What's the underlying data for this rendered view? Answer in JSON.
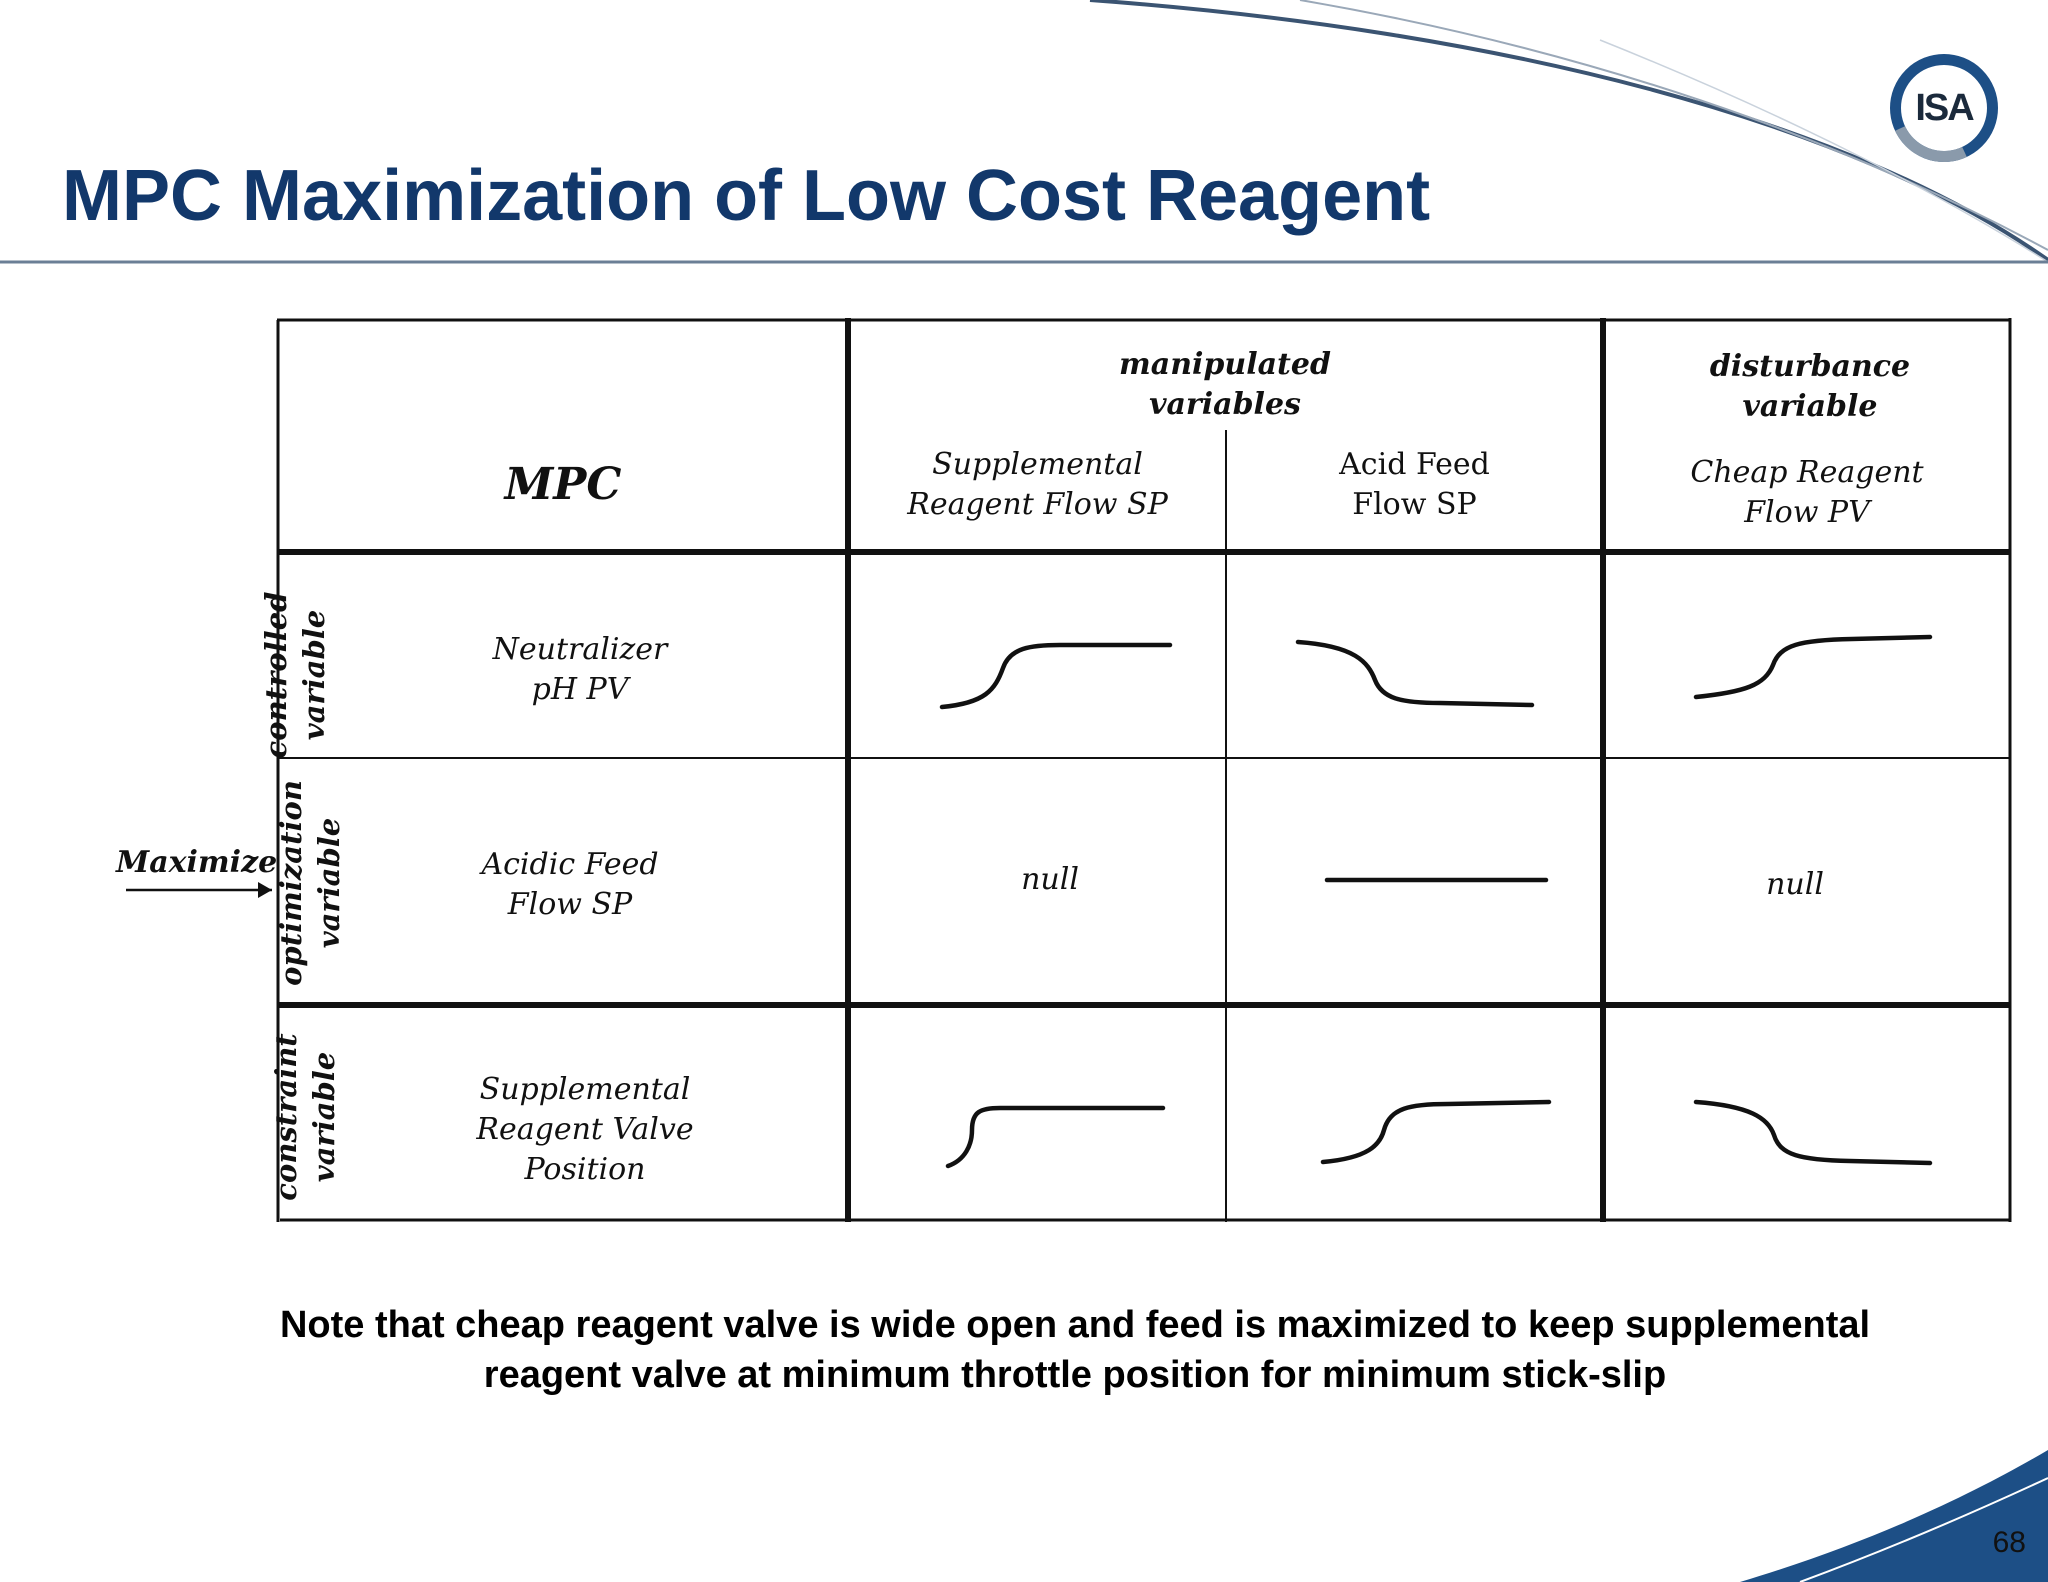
{
  "slide": {
    "title": "MPC Maximization of Low Cost Reagent",
    "logo_text": "ISA",
    "page_number": "68",
    "note": "Note that cheap reagent valve is wide open and feed is maximized to keep supplemental\nreagent valve at minimum throttle position for minimum stick-slip"
  },
  "matrix": {
    "corner_label": "MPC",
    "group_headers": {
      "manipulated": "manipulated\nvariables",
      "disturbance": "disturbance\nvariable"
    },
    "columns": [
      "Supplemental\nReagent Flow SP",
      "Acid Feed\nFlow SP",
      "Cheap Reagent\nFlow PV"
    ],
    "row_types": [
      "controlled\nvariable",
      "optimization\nvariable",
      "constraint\nvariable"
    ],
    "rows": [
      "Neutralizer\npH PV",
      "Acidic Feed\nFlow SP",
      "Supplemental\nReagent Valve\nPosition"
    ],
    "responses": [
      [
        "rise",
        "fall",
        "rise"
      ],
      [
        "null",
        "flat",
        "null"
      ],
      [
        "rise-fast",
        "rise",
        "fall"
      ]
    ],
    "null_label": "null",
    "maximize_label": "Maximize"
  },
  "colors": {
    "title": "#12386b",
    "accent": "#1d4f86",
    "line": "#111111"
  }
}
